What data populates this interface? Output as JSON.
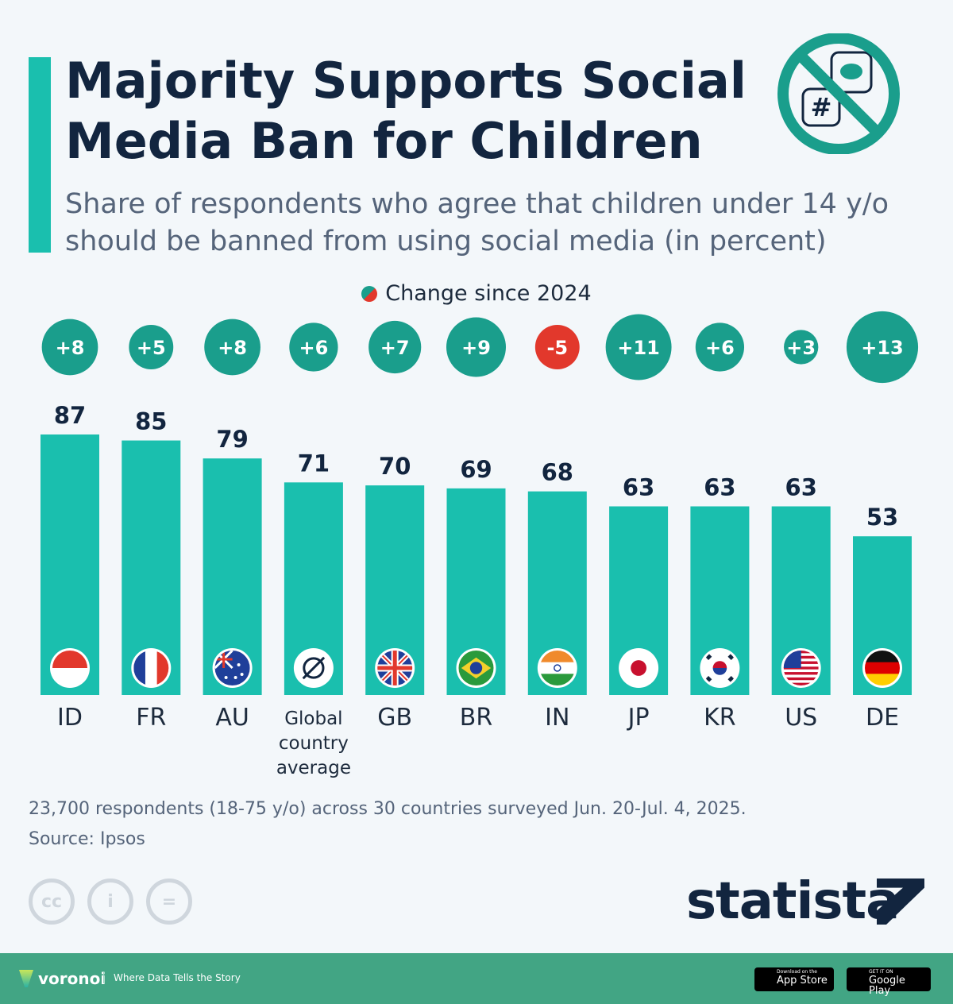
{
  "header": {
    "title": "Majority Supports Social Media Ban for Children",
    "subtitle": "Share of respondents who agree that children under 14 y/o should be banned from using social media (in percent)",
    "icon": "no-social-media-icon"
  },
  "legend": {
    "label": "Change since 2024"
  },
  "colors": {
    "bar": "#1abfae",
    "positive": "#1a9e8c",
    "negative": "#e2382c",
    "title": "#12253f"
  },
  "chart_data": {
    "type": "bar",
    "categories": [
      "ID",
      "FR",
      "AU",
      "Global country average",
      "GB",
      "BR",
      "IN",
      "JP",
      "KR",
      "US",
      "DE"
    ],
    "values": [
      87,
      85,
      79,
      71,
      70,
      69,
      68,
      63,
      63,
      63,
      53
    ],
    "change_since_2024": [
      8,
      5,
      8,
      6,
      7,
      9,
      -5,
      11,
      6,
      3,
      13
    ],
    "change_labels": [
      "+8",
      "+5",
      "+8",
      "+6",
      "+7",
      "+9",
      "-5",
      "+11",
      "+6",
      "+3",
      "+13"
    ],
    "flags": [
      "flag-indonesia",
      "flag-france",
      "flag-australia",
      "global-average-icon",
      "flag-uk",
      "flag-brazil",
      "flag-india",
      "flag-japan",
      "flag-south-korea",
      "flag-usa",
      "flag-germany"
    ],
    "ylim": [
      0,
      100
    ],
    "grid": false,
    "legend_placement": "top-center"
  },
  "footnote": {
    "text": "23,700 respondents (18-75 y/o) across 30 countries surveyed Jun. 20-Jul. 4, 2025.",
    "source": "Source: Ipsos"
  },
  "license": {
    "cc": "cc",
    "by": "i",
    "nd": "="
  },
  "brand": {
    "name": "statista"
  },
  "footer": {
    "brand": "voronoi",
    "tagline": "Where Data Tells the Story",
    "app_store_small": "Download on the",
    "app_store": "App Store",
    "google_small": "GET IT ON",
    "google": "Google Play"
  }
}
